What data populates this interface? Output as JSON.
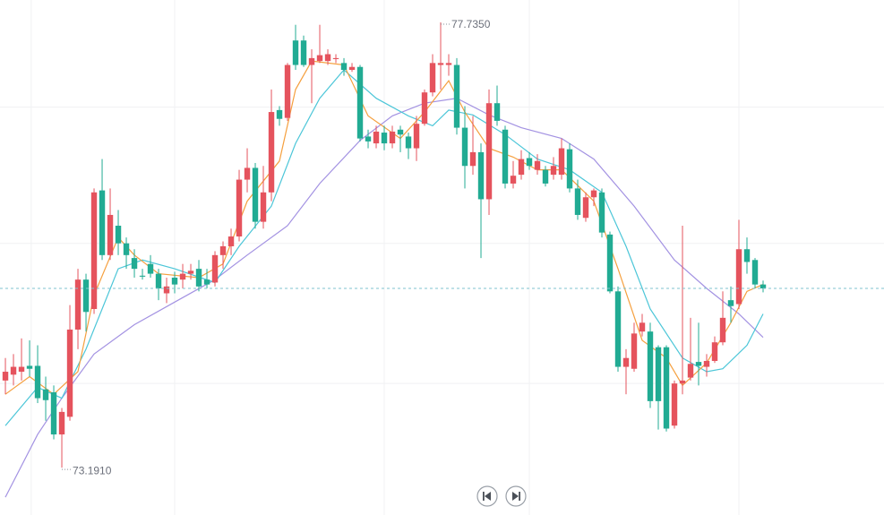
{
  "chart_data": {
    "type": "candlestick",
    "xlim": [
      -0.67,
      109
    ],
    "ylim": [
      72.708,
      77.963
    ],
    "xticks": [
      3.2,
      21,
      47,
      65,
      91
    ],
    "yticks": [
      76.87,
      75.48,
      74.05
    ],
    "grid": true,
    "up_color": "#e5535d",
    "down_color": "#21ab93",
    "high_label": "77.7350",
    "low_label": "73.1910",
    "ohlc": [
      [
        74.08,
        74.31,
        73.94,
        74.17
      ],
      [
        74.14,
        74.35,
        74.03,
        74.22
      ],
      [
        74.17,
        74.51,
        74.08,
        74.22
      ],
      [
        74.23,
        74.49,
        74.12,
        74.2
      ],
      [
        74.23,
        74.44,
        73.85,
        73.9
      ],
      [
        73.99,
        74.12,
        73.67,
        73.88
      ],
      [
        73.96,
        74.03,
        73.48,
        73.53
      ],
      [
        73.53,
        73.8,
        73.191,
        73.76
      ],
      [
        73.71,
        74.85,
        73.67,
        74.6
      ],
      [
        74.6,
        75.22,
        74.4,
        75.11
      ],
      [
        75.11,
        75.17,
        74.58,
        74.78
      ],
      [
        74.81,
        76.04,
        74.76,
        76.0
      ],
      [
        76.02,
        76.34,
        75.31,
        75.36
      ],
      [
        75.36,
        76.04,
        75.31,
        75.77
      ],
      [
        75.66,
        75.82,
        75.36,
        75.48
      ],
      [
        75.48,
        75.54,
        75.22,
        75.36
      ],
      [
        75.33,
        75.42,
        75.13,
        75.22
      ],
      [
        75.15,
        75.22,
        75.11,
        75.14
      ],
      [
        75.27,
        75.36,
        75.13,
        75.17
      ],
      [
        75.17,
        75.22,
        74.9,
        75.02
      ],
      [
        74.97,
        75.13,
        74.87,
        75.04
      ],
      [
        75.13,
        75.19,
        74.97,
        75.06
      ],
      [
        75.11,
        75.27,
        75.02,
        75.17
      ],
      [
        75.17,
        75.27,
        75.11,
        75.2
      ],
      [
        75.22,
        75.31,
        74.99,
        75.04
      ],
      [
        75.11,
        75.22,
        75.02,
        75.06
      ],
      [
        75.08,
        75.4,
        75.04,
        75.36
      ],
      [
        75.36,
        75.5,
        75.22,
        75.45
      ],
      [
        75.45,
        75.63,
        75.36,
        75.55
      ],
      [
        75.55,
        76.23,
        75.5,
        76.13
      ],
      [
        76.13,
        76.45,
        76.0,
        76.25
      ],
      [
        76.25,
        76.3,
        75.63,
        75.7
      ],
      [
        75.7,
        76.27,
        75.63,
        76.0
      ],
      [
        76.0,
        77.05,
        75.91,
        76.82
      ],
      [
        76.84,
        76.88,
        76.68,
        76.75
      ],
      [
        76.76,
        77.32,
        76.73,
        77.3
      ],
      [
        77.55,
        77.71,
        77.25,
        77.3
      ],
      [
        77.55,
        77.6,
        77.28,
        77.3
      ],
      [
        77.3,
        77.46,
        76.91,
        77.37
      ],
      [
        77.34,
        77.71,
        77.32,
        77.4
      ],
      [
        77.34,
        77.46,
        77.3,
        77.41
      ],
      [
        77.36,
        77.41,
        77.32,
        77.37
      ],
      [
        77.32,
        77.37,
        77.19,
        77.25
      ],
      [
        77.25,
        77.32,
        77.23,
        77.28
      ],
      [
        77.28,
        77.3,
        76.52,
        76.55
      ],
      [
        76.57,
        76.64,
        76.45,
        76.52
      ],
      [
        76.5,
        76.68,
        76.45,
        76.62
      ],
      [
        76.61,
        76.68,
        76.43,
        76.5
      ],
      [
        76.5,
        76.68,
        76.45,
        76.62
      ],
      [
        76.64,
        76.68,
        76.41,
        76.59
      ],
      [
        76.57,
        76.61,
        76.34,
        76.45
      ],
      [
        76.45,
        76.78,
        76.32,
        76.7
      ],
      [
        76.7,
        77.05,
        76.68,
        77.02
      ],
      [
        77.02,
        77.41,
        76.98,
        77.32
      ],
      [
        77.3,
        77.735,
        77.05,
        77.32
      ],
      [
        77.3,
        77.41,
        77.19,
        77.32
      ],
      [
        77.3,
        77.37,
        76.59,
        76.66
      ],
      [
        76.66,
        76.88,
        76.04,
        76.27
      ],
      [
        76.27,
        76.78,
        76.18,
        76.41
      ],
      [
        76.41,
        76.5,
        75.33,
        75.93
      ],
      [
        75.93,
        77.05,
        75.77,
        76.91
      ],
      [
        76.91,
        77.09,
        76.68,
        76.73
      ],
      [
        76.64,
        76.68,
        76.04,
        76.09
      ],
      [
        76.09,
        76.32,
        76.04,
        76.17
      ],
      [
        76.18,
        76.43,
        76.13,
        76.34
      ],
      [
        76.35,
        76.41,
        76.23,
        76.27
      ],
      [
        76.23,
        76.39,
        76.18,
        76.32
      ],
      [
        76.23,
        76.27,
        76.06,
        76.09
      ],
      [
        76.18,
        76.36,
        76.13,
        76.27
      ],
      [
        76.18,
        76.55,
        76.13,
        76.45
      ],
      [
        76.44,
        76.5,
        76.0,
        76.04
      ],
      [
        76.04,
        76.13,
        75.72,
        75.77
      ],
      [
        75.74,
        76.0,
        75.7,
        75.95
      ],
      [
        75.95,
        76.04,
        75.86,
        76.02
      ],
      [
        76.0,
        76.04,
        75.54,
        75.59
      ],
      [
        75.57,
        75.6,
        74.97,
        74.99
      ],
      [
        74.99,
        75.04,
        74.17,
        74.22
      ],
      [
        74.22,
        74.4,
        73.94,
        74.31
      ],
      [
        74.2,
        74.67,
        74.17,
        74.56
      ],
      [
        74.58,
        74.76,
        74.53,
        74.67
      ],
      [
        74.58,
        74.67,
        73.8,
        73.87
      ],
      [
        74.42,
        74.44,
        73.58,
        73.87
      ],
      [
        74.42,
        74.44,
        73.56,
        73.59
      ],
      [
        73.62,
        74.08,
        73.59,
        74.05
      ],
      [
        74.05,
        75.66,
        73.94,
        74.08
      ],
      [
        74.11,
        74.72,
        74.08,
        74.25
      ],
      [
        74.27,
        74.67,
        74.03,
        74.23
      ],
      [
        74.22,
        74.35,
        74.12,
        74.28
      ],
      [
        74.28,
        74.53,
        74.26,
        74.47
      ],
      [
        74.47,
        74.99,
        74.44,
        74.72
      ],
      [
        74.9,
        75.04,
        74.67,
        74.84
      ],
      [
        74.86,
        75.72,
        74.81,
        75.42
      ],
      [
        75.42,
        75.54,
        75.17,
        75.29
      ],
      [
        75.31,
        75.33,
        75.02,
        75.06
      ],
      [
        75.06,
        75.1,
        74.98,
        75.02
      ]
    ],
    "series": [
      {
        "color": "#a392e2",
        "x": [
          0,
          4,
          7,
          11,
          16,
          21,
          26,
          30,
          35,
          39,
          44,
          48,
          52,
          56,
          60,
          64,
          69,
          73,
          78,
          83,
          87,
          91,
          94
        ],
        "values": [
          72.89,
          73.53,
          73.9,
          74.35,
          74.65,
          74.88,
          75.11,
          75.36,
          75.66,
          76.09,
          76.53,
          76.78,
          76.91,
          76.96,
          76.79,
          76.66,
          76.55,
          76.34,
          75.86,
          75.31,
          75.02,
          74.76,
          74.52
        ]
      },
      {
        "color": "#4cc6d8",
        "x": [
          0,
          4,
          7,
          10,
          14,
          17,
          21,
          26,
          29,
          33,
          36,
          39,
          42,
          46,
          50,
          53,
          55,
          58,
          62,
          66,
          70,
          74,
          77,
          80,
          84,
          87,
          89,
          92,
          94
        ],
        "values": [
          73.62,
          74.01,
          73.9,
          74.4,
          75.22,
          75.31,
          75.22,
          75.08,
          75.45,
          75.86,
          76.5,
          76.96,
          77.25,
          76.96,
          76.78,
          76.68,
          76.84,
          76.79,
          76.59,
          76.34,
          76.23,
          76.0,
          75.45,
          74.81,
          74.31,
          74.17,
          74.2,
          74.44,
          74.76
        ]
      },
      {
        "color": "#f5a03f",
        "x": [
          0,
          3,
          6,
          9,
          11,
          14,
          16,
          19,
          24,
          27,
          30,
          34,
          36,
          38,
          42,
          45,
          49,
          52,
          55,
          57,
          60,
          63,
          66,
          69,
          73,
          76,
          79,
          82,
          84,
          87,
          90,
          92,
          94
        ],
        "values": [
          73.94,
          74.12,
          73.94,
          74.17,
          74.95,
          75.54,
          75.36,
          75.17,
          75.13,
          75.27,
          75.91,
          76.32,
          77.05,
          77.34,
          77.3,
          76.78,
          76.55,
          76.82,
          77.14,
          76.82,
          76.45,
          76.36,
          76.23,
          76.23,
          75.91,
          75.22,
          74.49,
          74.31,
          74.03,
          74.26,
          74.67,
          74.99,
          75.06
        ]
      }
    ]
  }
}
